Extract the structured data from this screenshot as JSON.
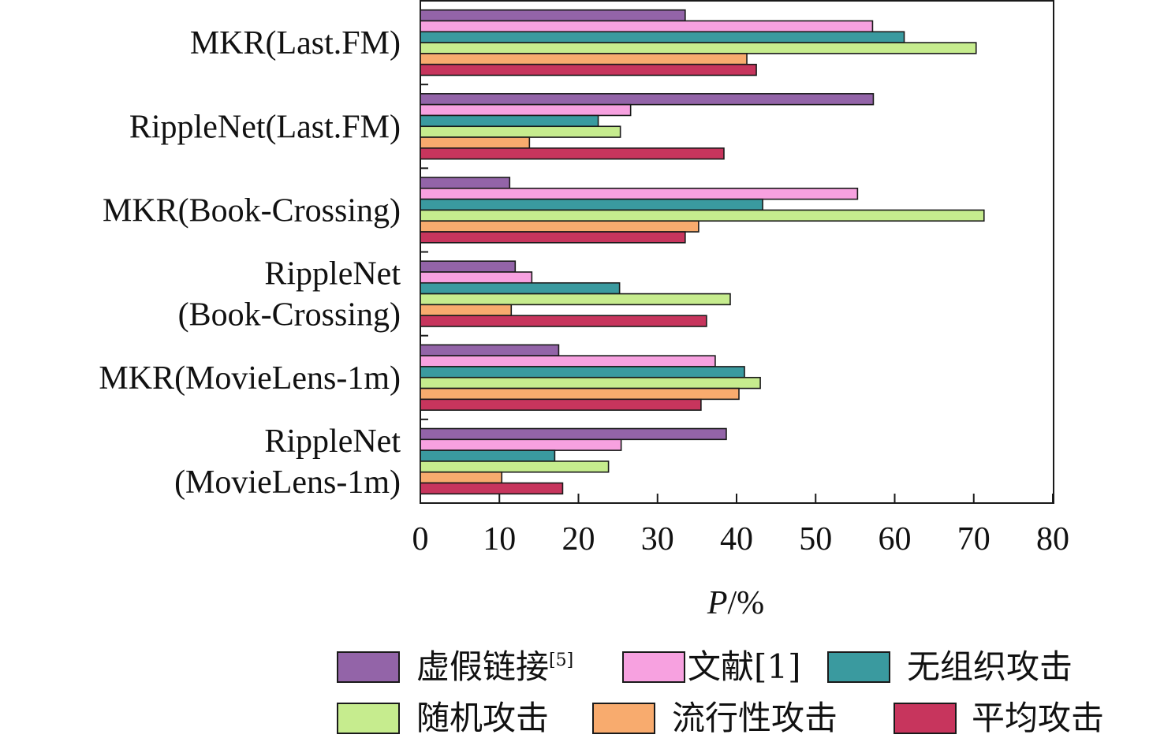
{
  "chart_data": {
    "type": "bar",
    "orientation": "horizontal",
    "categories": [
      [
        "MKR(Last.FM)"
      ],
      [
        "RippleNet(Last.FM)"
      ],
      [
        "MKR(Book-Crossing)"
      ],
      [
        "RippleNet",
        "(Book-Crossing)"
      ],
      [
        "MKR(MovieLens-1m)"
      ],
      [
        "RippleNet",
        "(MovieLens-1m)"
      ]
    ],
    "series": [
      {
        "name": "虚假链接",
        "name_sup": "[5]",
        "color": "#9364a8",
        "values": [
          33.5,
          57.3,
          11.3,
          12.0,
          17.5,
          38.7
        ]
      },
      {
        "name": "文献[1]",
        "name_sup": "",
        "color": "#f7a1e0",
        "values": [
          57.2,
          26.6,
          55.3,
          14.1,
          37.3,
          25.4
        ]
      },
      {
        "name": "无组织攻击",
        "name_sup": "",
        "color": "#3a9a9f",
        "values": [
          61.2,
          22.5,
          43.3,
          25.2,
          41.0,
          17.0
        ]
      },
      {
        "name": "随机攻击",
        "name_sup": "",
        "color": "#c6ec8e",
        "values": [
          70.3,
          25.3,
          71.3,
          39.2,
          43.0,
          23.8
        ]
      },
      {
        "name": "流行性攻击",
        "name_sup": "",
        "color": "#f8ab6e",
        "values": [
          41.3,
          13.8,
          35.2,
          11.5,
          40.3,
          10.3
        ]
      },
      {
        "name": "平均攻击",
        "name_sup": "",
        "color": "#c7355d",
        "values": [
          42.5,
          38.4,
          33.5,
          36.2,
          35.5,
          18.0
        ]
      }
    ],
    "xlabel_italic": "P",
    "xlabel_rest": "/%",
    "xlim": [
      0,
      80
    ],
    "xticks": [
      "0",
      "10",
      "20",
      "30",
      "40",
      "50",
      "60",
      "70",
      "80"
    ],
    "grid": false,
    "legend_position": "bottom"
  }
}
